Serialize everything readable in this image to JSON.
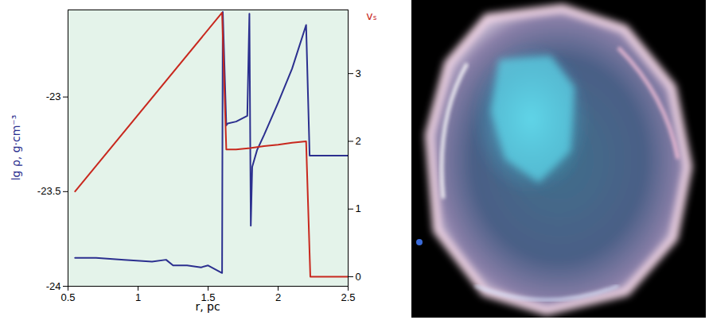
{
  "chart_data": {
    "type": "line",
    "xlabel": "r, pc",
    "ylabel": "lg ρ, g·cm⁻³",
    "y2label": "vₛ",
    "xlim": [
      0.5,
      2.5
    ],
    "xticks": [
      0.5,
      1,
      1.5,
      2,
      2.5
    ],
    "ylim": [
      -24,
      -22.54
    ],
    "yticks": [
      -24,
      -23.5,
      -23
    ],
    "y2lim": [
      -0.14,
      3.94
    ],
    "y2ticks": [
      0,
      1,
      2,
      3
    ],
    "grid": false,
    "series": [
      {
        "color": "#2b2f8f",
        "x": [
          0.55,
          0.7,
          0.9,
          1.1,
          1.2,
          1.25,
          1.35,
          1.45,
          1.5,
          1.55,
          1.6,
          1.605,
          1.63,
          1.64,
          1.7,
          1.78,
          1.795,
          1.805,
          1.815,
          1.85,
          1.9,
          2.0,
          2.1,
          2.2,
          2.225,
          2.5
        ],
        "values": [
          -23.85,
          -23.85,
          -23.86,
          -23.87,
          -23.86,
          -23.89,
          -23.89,
          -23.9,
          -23.89,
          -23.91,
          -23.93,
          -22.55,
          -23.15,
          -23.14,
          -23.13,
          -23.1,
          -22.56,
          -23.68,
          -23.37,
          -23.28,
          -23.2,
          -23.03,
          -22.85,
          -22.62,
          -23.31,
          -23.31
        ]
      },
      {
        "color": "#c8281e",
        "axis": "y2",
        "x": [
          0.55,
          1.6,
          1.63,
          1.7,
          1.8,
          1.9,
          2.0,
          2.1,
          2.2,
          2.23,
          2.5
        ],
        "values": [
          1.26,
          3.9,
          1.88,
          1.88,
          1.9,
          1.93,
          1.95,
          1.98,
          2.0,
          0,
          0
        ]
      }
    ]
  }
}
